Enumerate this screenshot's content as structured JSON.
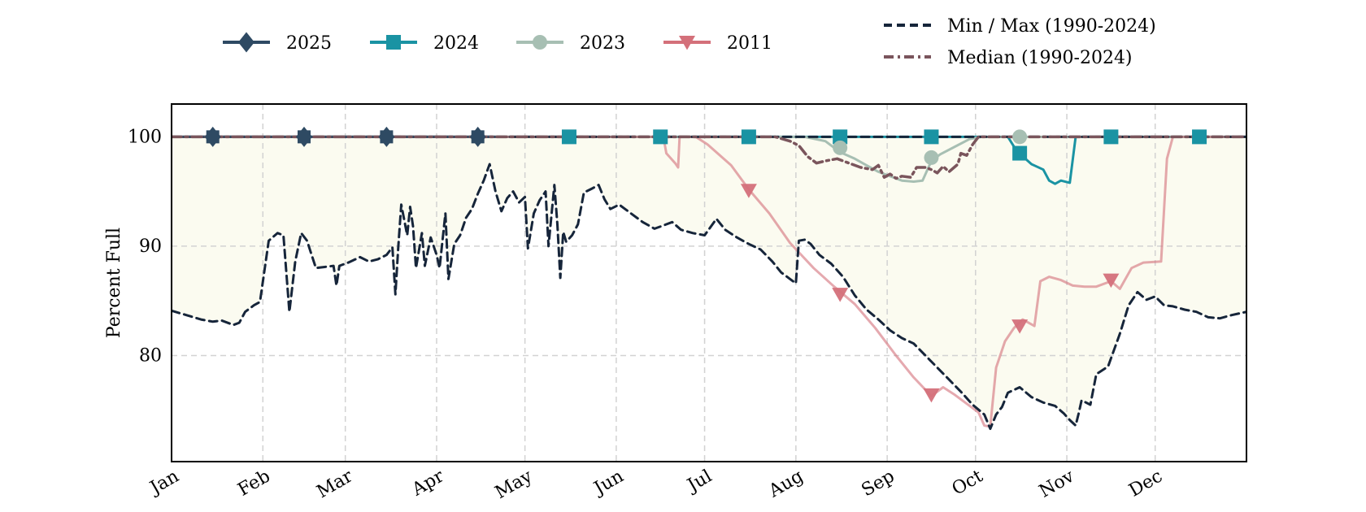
{
  "chart_data": {
    "type": "line",
    "title": "",
    "xlabel": "",
    "ylabel": "Percent Full",
    "ylim": [
      70.3,
      103
    ],
    "xlim": [
      0,
      365
    ],
    "yticks": [
      80,
      90,
      100
    ],
    "xticks": [
      {
        "label": "Jan",
        "day": 0
      },
      {
        "label": "Feb",
        "day": 31
      },
      {
        "label": "Mar",
        "day": 59
      },
      {
        "label": "Apr",
        "day": 90
      },
      {
        "label": "May",
        "day": 120
      },
      {
        "label": "Jun",
        "day": 151
      },
      {
        "label": "Jul",
        "day": 181
      },
      {
        "label": "Aug",
        "day": 212
      },
      {
        "label": "Sep",
        "day": 243
      },
      {
        "label": "Oct",
        "day": 273
      },
      {
        "label": "Nov",
        "day": 304
      },
      {
        "label": "Dec",
        "day": 334
      }
    ],
    "grid": true,
    "legend_placement": "top",
    "series": [
      {
        "name": "2025",
        "color": "#2e4a63",
        "marker": "diamond",
        "style": "solid",
        "points": [
          [
            0,
            100
          ],
          [
            14,
            100
          ],
          [
            45,
            100
          ],
          [
            73,
            100
          ],
          [
            104,
            100
          ],
          [
            110,
            100
          ]
        ],
        "markers": [
          [
            14,
            100
          ],
          [
            45,
            100
          ],
          [
            73,
            100
          ],
          [
            104,
            100
          ]
        ]
      },
      {
        "name": "2024",
        "color": "#1a93a3",
        "marker": "square",
        "style": "solid",
        "points": [
          [
            0,
            100
          ],
          [
            284,
            100
          ],
          [
            287,
            98.7
          ],
          [
            292,
            97.5
          ],
          [
            296,
            97
          ],
          [
            298,
            96
          ],
          [
            300,
            95.7
          ],
          [
            302,
            96
          ],
          [
            305,
            95.8
          ],
          [
            307,
            100
          ],
          [
            365,
            100
          ]
        ],
        "markers": [
          [
            135,
            100
          ],
          [
            166,
            100
          ],
          [
            196,
            100
          ],
          [
            227,
            100
          ],
          [
            258,
            100
          ],
          [
            288,
            98.5
          ],
          [
            319,
            100
          ],
          [
            349,
            100
          ]
        ]
      },
      {
        "name": "2023",
        "color": "#a7bfb3",
        "marker": "circle",
        "style": "solid",
        "points": [
          [
            0,
            100
          ],
          [
            215,
            100
          ],
          [
            222,
            99.6
          ],
          [
            227,
            98.6
          ],
          [
            232,
            98
          ],
          [
            236,
            97.4
          ],
          [
            240,
            96.8
          ],
          [
            244,
            96.4
          ],
          [
            248,
            96
          ],
          [
            252,
            95.9
          ],
          [
            255,
            96
          ],
          [
            258,
            97.8
          ],
          [
            261,
            98.4
          ],
          [
            266,
            99.1
          ],
          [
            271,
            99.8
          ],
          [
            275,
            100
          ],
          [
            284,
            100
          ],
          [
            288,
            100
          ],
          [
            365,
            100
          ]
        ],
        "markers": [
          [
            227,
            99
          ],
          [
            258,
            98.1
          ],
          [
            288,
            100
          ]
        ]
      },
      {
        "name": "2011",
        "color": "#d4707a",
        "marker": "triangle-down",
        "style": "solid",
        "points": [
          [
            0,
            100
          ],
          [
            167,
            100
          ],
          [
            168,
            98.5
          ],
          [
            171,
            97.6
          ],
          [
            172,
            97.2
          ],
          [
            172.5,
            100
          ],
          [
            178,
            100
          ],
          [
            182,
            99.3
          ],
          [
            190,
            97.4
          ],
          [
            196,
            95.2
          ],
          [
            203,
            93
          ],
          [
            210,
            90.3
          ],
          [
            218,
            88
          ],
          [
            225,
            86.3
          ],
          [
            232,
            84.7
          ],
          [
            239,
            82.5
          ],
          [
            246,
            80
          ],
          [
            252,
            78
          ],
          [
            258,
            76.3
          ],
          [
            262,
            77.1
          ],
          [
            266,
            76.4
          ],
          [
            270,
            75.6
          ],
          [
            274,
            74.8
          ],
          [
            276,
            73.6
          ],
          [
            278,
            73.5
          ],
          [
            280,
            78.9
          ],
          [
            283,
            81.3
          ],
          [
            286,
            82.5
          ],
          [
            289,
            83.3
          ],
          [
            293,
            82.7
          ],
          [
            295,
            86.8
          ],
          [
            298,
            87.2
          ],
          [
            302,
            86.9
          ],
          [
            306,
            86.4
          ],
          [
            310,
            86.3
          ],
          [
            314,
            86.3
          ],
          [
            319,
            86.8
          ],
          [
            322,
            86.1
          ],
          [
            326,
            88
          ],
          [
            330,
            88.5
          ],
          [
            336,
            88.6
          ],
          [
            338,
            98
          ],
          [
            340,
            100
          ],
          [
            365,
            100
          ]
        ],
        "markers": [
          [
            196,
            95.1
          ],
          [
            227,
            85.6
          ],
          [
            258,
            76.4
          ],
          [
            288,
            82.7
          ],
          [
            319,
            86.9
          ]
        ]
      },
      {
        "name": "Min / Max (1990-2024)",
        "color": "#16253a",
        "marker": "none",
        "style": "dashed",
        "points": [
          [
            0,
            84.1
          ],
          [
            5,
            83.7
          ],
          [
            10,
            83.3
          ],
          [
            14,
            83.1
          ],
          [
            17,
            83.2
          ],
          [
            21,
            82.8
          ],
          [
            23,
            83
          ],
          [
            25,
            84
          ],
          [
            28,
            84.6
          ],
          [
            30,
            84.9
          ],
          [
            33,
            90.5
          ],
          [
            36,
            91.2
          ],
          [
            38,
            91
          ],
          [
            40,
            84
          ],
          [
            42,
            88.6
          ],
          [
            44,
            91.2
          ],
          [
            46,
            90.5
          ],
          [
            49,
            88
          ],
          [
            52,
            88.1
          ],
          [
            55,
            88.2
          ],
          [
            56,
            86.4
          ],
          [
            57,
            88.2
          ],
          [
            60,
            88.5
          ],
          [
            64,
            89
          ],
          [
            67,
            88.6
          ],
          [
            70,
            88.8
          ],
          [
            73,
            89.2
          ],
          [
            75,
            89.9
          ],
          [
            76,
            85.6
          ],
          [
            77,
            90
          ],
          [
            78,
            93.8
          ],
          [
            80,
            91
          ],
          [
            81,
            93.6
          ],
          [
            82,
            91.8
          ],
          [
            83,
            88
          ],
          [
            85,
            91.2
          ],
          [
            86,
            88.2
          ],
          [
            88,
            90.8
          ],
          [
            90,
            89.2
          ],
          [
            91,
            88
          ],
          [
            93,
            93
          ],
          [
            94,
            87
          ],
          [
            96,
            90.2
          ],
          [
            98,
            91
          ],
          [
            100,
            92.6
          ],
          [
            102,
            93.4
          ],
          [
            104,
            94.8
          ],
          [
            106,
            96
          ],
          [
            108,
            97.5
          ],
          [
            110,
            95
          ],
          [
            112,
            93.2
          ],
          [
            114,
            94.4
          ],
          [
            116,
            95
          ],
          [
            118,
            94
          ],
          [
            120,
            94.5
          ],
          [
            121,
            89.8
          ],
          [
            123,
            93
          ],
          [
            125,
            94.2
          ],
          [
            127,
            95
          ],
          [
            128,
            90
          ],
          [
            130,
            95.6
          ],
          [
            131,
            92
          ],
          [
            132,
            87.1
          ],
          [
            133,
            91.3
          ],
          [
            134,
            90.4
          ],
          [
            136,
            91
          ],
          [
            138,
            92
          ],
          [
            140,
            94.9
          ],
          [
            143,
            95.3
          ],
          [
            145,
            95.6
          ],
          [
            147,
            94.3
          ],
          [
            149,
            93.4
          ],
          [
            152,
            93.8
          ],
          [
            156,
            93
          ],
          [
            160,
            92.2
          ],
          [
            164,
            91.6
          ],
          [
            167,
            91.9
          ],
          [
            170,
            92.2
          ],
          [
            173,
            91.5
          ],
          [
            177,
            91.2
          ],
          [
            181,
            91
          ],
          [
            185,
            92.5
          ],
          [
            188,
            91.5
          ],
          [
            192,
            90.8
          ],
          [
            196,
            90.2
          ],
          [
            200,
            89.7
          ],
          [
            204,
            88.6
          ],
          [
            207,
            87.6
          ],
          [
            210,
            87
          ],
          [
            212,
            86.6
          ],
          [
            213,
            90.5
          ],
          [
            215,
            90.6
          ],
          [
            217,
            90.2
          ],
          [
            220,
            89.2
          ],
          [
            224,
            88.4
          ],
          [
            228,
            87.2
          ],
          [
            232,
            85.5
          ],
          [
            236,
            84.2
          ],
          [
            240,
            83.3
          ],
          [
            244,
            82.3
          ],
          [
            248,
            81.6
          ],
          [
            252,
            81.1
          ],
          [
            256,
            80
          ],
          [
            260,
            78.9
          ],
          [
            264,
            77.8
          ],
          [
            268,
            76.7
          ],
          [
            272,
            75.5
          ],
          [
            276,
            74.6
          ],
          [
            278,
            73.3
          ],
          [
            280,
            74.6
          ],
          [
            282,
            75.3
          ],
          [
            284,
            76.6
          ],
          [
            288,
            77.1
          ],
          [
            292,
            76.2
          ],
          [
            296,
            75.7
          ],
          [
            300,
            75.4
          ],
          [
            303,
            74.7
          ],
          [
            305,
            74.1
          ],
          [
            307,
            73.6
          ],
          [
            308,
            74.7
          ],
          [
            309,
            75.9
          ],
          [
            312,
            75.5
          ],
          [
            314,
            78.3
          ],
          [
            318,
            79
          ],
          [
            322,
            82
          ],
          [
            325,
            84.6
          ],
          [
            328,
            85.8
          ],
          [
            331,
            85.1
          ],
          [
            334,
            85.4
          ],
          [
            337,
            84.6
          ],
          [
            340,
            84.5
          ],
          [
            344,
            84.2
          ],
          [
            348,
            84
          ],
          [
            352,
            83.5
          ],
          [
            356,
            83.4
          ],
          [
            360,
            83.7
          ],
          [
            365,
            84
          ]
        ]
      },
      {
        "name": "Median (1990-2024)",
        "color": "#7a555c",
        "marker": "none",
        "style": "dashdot",
        "points": [
          [
            0,
            100
          ],
          [
            205,
            100
          ],
          [
            210,
            99.6
          ],
          [
            213,
            99.2
          ],
          [
            216,
            98.2
          ],
          [
            219,
            97.6
          ],
          [
            222,
            97.8
          ],
          [
            226,
            98
          ],
          [
            230,
            97.6
          ],
          [
            234,
            97.2
          ],
          [
            238,
            97
          ],
          [
            240,
            97.4
          ],
          [
            242,
            96.3
          ],
          [
            244,
            96.6
          ],
          [
            246,
            96.2
          ],
          [
            248,
            96.4
          ],
          [
            251,
            96.3
          ],
          [
            253,
            97.2
          ],
          [
            256,
            97.2
          ],
          [
            258,
            97
          ],
          [
            260,
            96.7
          ],
          [
            262,
            97.3
          ],
          [
            264,
            96.8
          ],
          [
            267,
            97.5
          ],
          [
            268,
            98.5
          ],
          [
            270,
            98.3
          ],
          [
            272,
            99.3
          ],
          [
            274,
            100
          ],
          [
            365,
            100
          ]
        ]
      }
    ]
  }
}
